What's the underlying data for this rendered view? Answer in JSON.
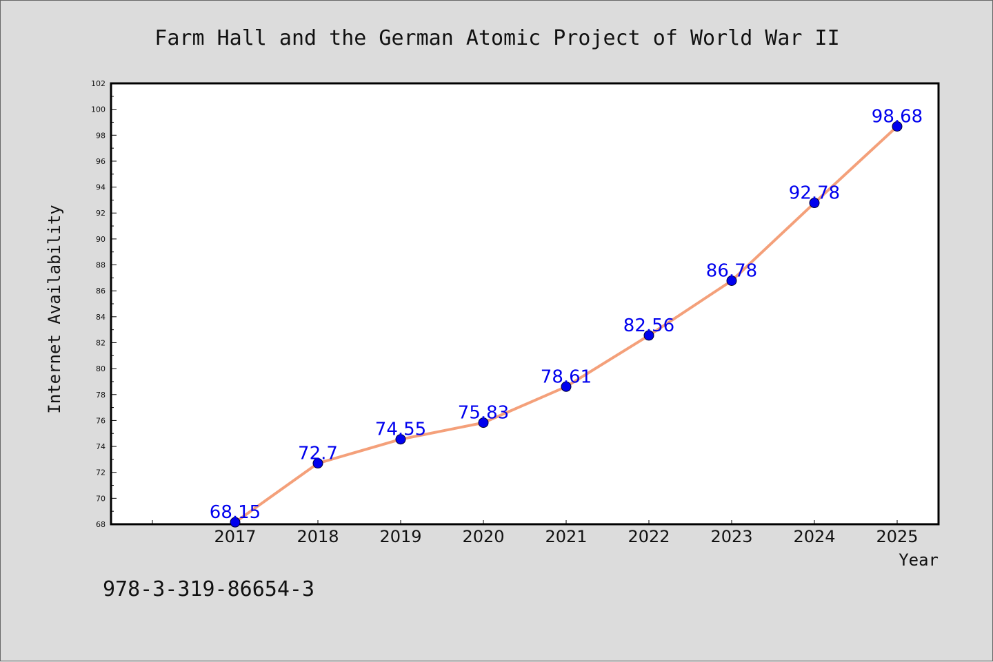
{
  "chart_data": {
    "type": "line",
    "title": "Farm Hall and the German Atomic Project of World War II",
    "xlabel": "Year",
    "ylabel": "Internet Availability",
    "categories": [
      "2017",
      "2018",
      "2019",
      "2020",
      "2021",
      "2022",
      "2023",
      "2024",
      "2025"
    ],
    "series": [
      {
        "values": [
          68.15,
          72.7,
          74.55,
          75.83,
          78.61,
          82.56,
          86.78,
          92.78,
          98.68
        ],
        "labels": [
          "68.15",
          "72.7",
          "74.55",
          "75.83",
          "78.61",
          "82.56",
          "86.78",
          "92.78",
          "98.68"
        ],
        "line_color": "#f4a07a",
        "marker_color": "#0000ee"
      }
    ],
    "ylim": [
      68,
      102
    ],
    "yticks": [
      "68",
      "70",
      "72",
      "74",
      "76",
      "78",
      "80",
      "82",
      "84",
      "86",
      "88",
      "90",
      "92",
      "94",
      "96",
      "98",
      "100",
      "102"
    ],
    "grid": false,
    "legend": "none"
  },
  "footer": {
    "isbn": "978-3-319-86654-3"
  },
  "colors": {
    "background": "#dcdcdc",
    "plot_background": "#ffffff",
    "line": "#f4a07a",
    "marker": "#0000ee",
    "data_label": "#0000ee"
  }
}
